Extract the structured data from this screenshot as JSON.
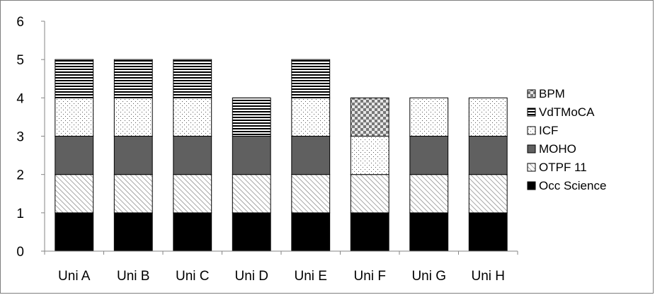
{
  "chart_data": {
    "type": "bar",
    "stacked": true,
    "title": "",
    "xlabel": "",
    "ylabel": "",
    "ylim": [
      0,
      6
    ],
    "yticks": [
      "0",
      "1",
      "2",
      "3",
      "4",
      "5",
      "6"
    ],
    "grid": false,
    "legend_position": "right",
    "categories": [
      "Uni A",
      "Uni B",
      "Uni C",
      "Uni D",
      "Uni E",
      "Uni F",
      "Uni G",
      "Uni H"
    ],
    "series": [
      {
        "name": "Occ Science",
        "values": [
          1,
          1,
          1,
          1,
          1,
          1,
          1,
          1
        ],
        "fill": "solid-black",
        "color": "#000000"
      },
      {
        "name": "OTPF 11",
        "values": [
          1,
          1,
          1,
          1,
          1,
          1,
          1,
          1
        ],
        "fill": "diagonal-hatch",
        "color": "#808080"
      },
      {
        "name": "MOHO",
        "values": [
          1,
          1,
          1,
          1,
          1,
          0,
          1,
          1
        ],
        "fill": "solid-gray",
        "color": "#606060"
      },
      {
        "name": "ICF",
        "values": [
          1,
          1,
          1,
          0,
          1,
          1,
          1,
          1
        ],
        "fill": "dots",
        "color": "#555555"
      },
      {
        "name": "VdTMoCA",
        "values": [
          1,
          1,
          1,
          1,
          1,
          0,
          0,
          0
        ],
        "fill": "horizontal-stripes",
        "color": "#000000"
      },
      {
        "name": "BPM",
        "values": [
          0,
          0,
          0,
          0,
          0,
          1,
          0,
          0
        ],
        "fill": "checkerboard",
        "color": "#777777"
      }
    ]
  }
}
